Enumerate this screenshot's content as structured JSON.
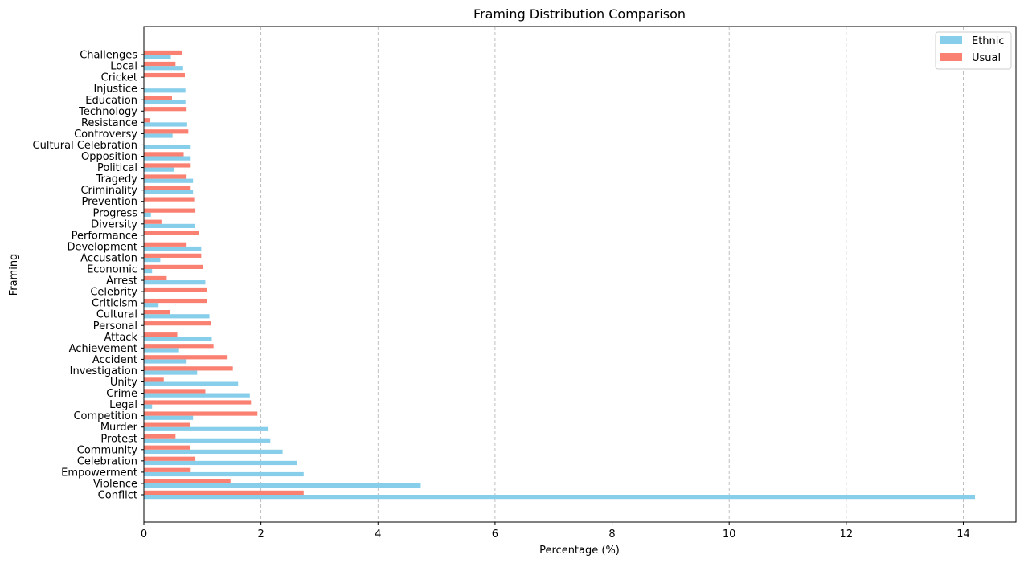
{
  "chart_data": {
    "type": "bar",
    "orientation": "horizontal",
    "title": "Framing Distribution Comparison",
    "xlabel": "Percentage (%)",
    "ylabel": "Framing",
    "xlim": [
      0,
      14.9
    ],
    "xticks": [
      0,
      2,
      4,
      6,
      8,
      10,
      12,
      14
    ],
    "grid": "x-dashed",
    "legend_position": "top-right",
    "categories": [
      "Conflict",
      "Violence",
      "Empowerment",
      "Celebration",
      "Community",
      "Protest",
      "Murder",
      "Competition",
      "Legal",
      "Crime",
      "Unity",
      "Investigation",
      "Accident",
      "Achievement",
      "Attack",
      "Personal",
      "Cultural",
      "Criticism",
      "Celebrity",
      "Arrest",
      "Economic",
      "Accusation",
      "Development",
      "Performance",
      "Diversity",
      "Progress",
      "Prevention",
      "Criminality",
      "Tragedy",
      "Political",
      "Opposition",
      "Cultural Celebration",
      "Controversy",
      "Resistance",
      "Technology",
      "Education",
      "Injustice",
      "Cricket",
      "Local",
      "Challenges"
    ],
    "series": [
      {
        "name": "Ethnic",
        "color": "#87ceeb",
        "values": [
          14.2,
          4.73,
          2.73,
          2.62,
          2.37,
          2.16,
          2.13,
          0.84,
          0.14,
          1.81,
          1.61,
          0.91,
          0.73,
          0.6,
          1.16,
          0,
          1.12,
          0.25,
          0,
          1.05,
          0.14,
          0.28,
          0.98,
          0,
          0.87,
          0.12,
          0,
          0.84,
          0.84,
          0.52,
          0.8,
          0.8,
          0.49,
          0.74,
          0,
          0.71,
          0.71,
          0,
          0.67,
          0.46
        ]
      },
      {
        "name": "Usual",
        "color": "#fa8072",
        "values": [
          2.73,
          1.48,
          0.8,
          0.88,
          0.79,
          0.54,
          0.79,
          1.94,
          1.83,
          1.05,
          0.34,
          1.52,
          1.43,
          1.19,
          0.57,
          1.15,
          0.45,
          1.08,
          1.08,
          0.39,
          1.01,
          0.98,
          0.73,
          0.94,
          0.3,
          0.88,
          0.86,
          0.8,
          0.73,
          0.8,
          0.68,
          0,
          0.76,
          0.1,
          0.73,
          0.48,
          0,
          0.7,
          0.54,
          0.65
        ]
      }
    ]
  }
}
